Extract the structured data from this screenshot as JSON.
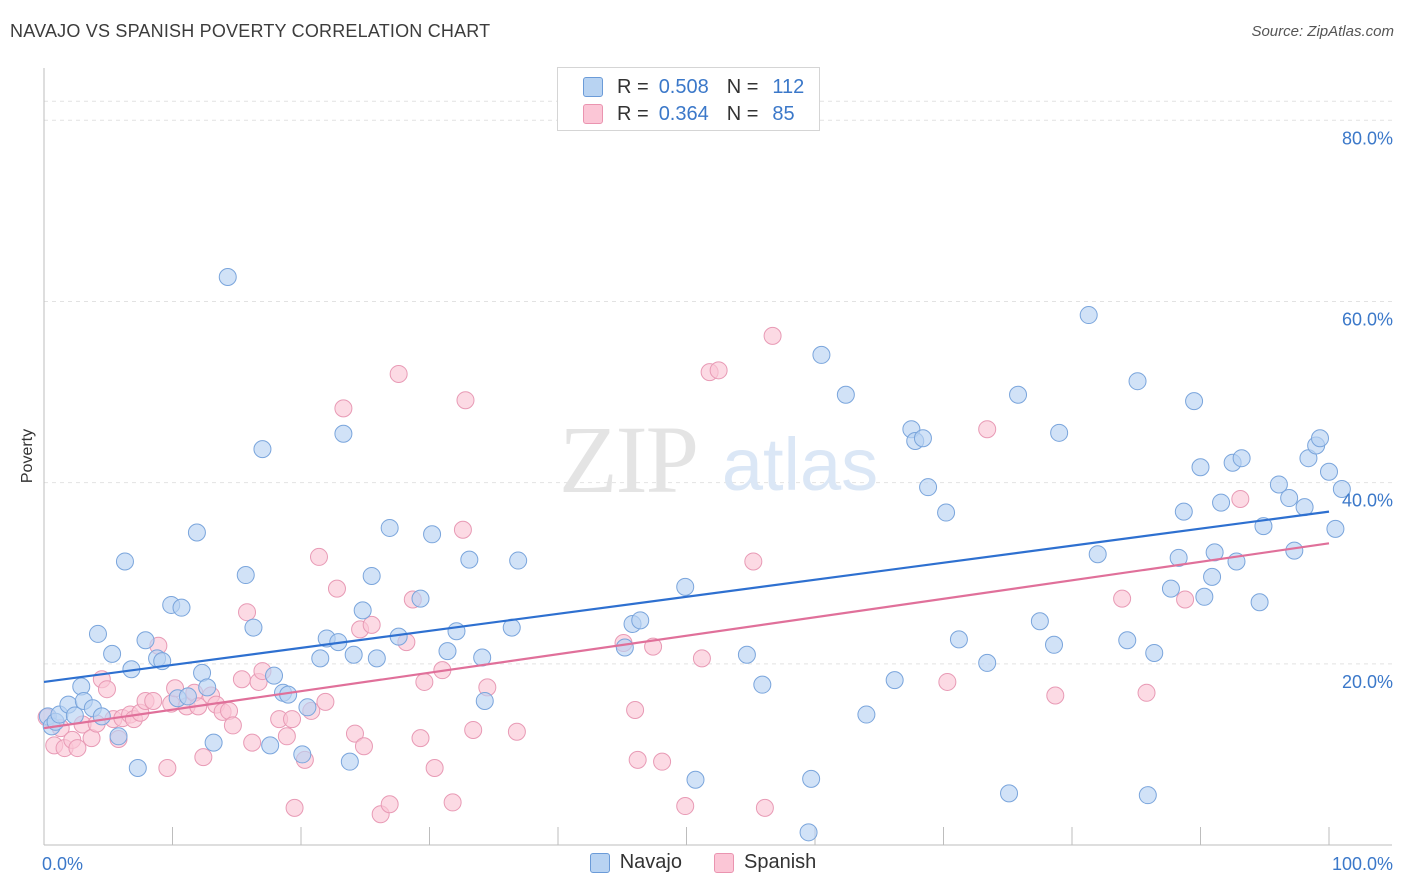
{
  "title": "NAVAJO VS SPANISH POVERTY CORRELATION CHART",
  "source": "Source: ZipAtlas.com",
  "watermark": {
    "zip": "ZIP",
    "atlas": "atlas"
  },
  "legend": {
    "navajo": {
      "r_label": "R =",
      "r_value": "0.508",
      "n_label": "N =",
      "n_value": "112"
    },
    "spanish": {
      "r_label": "R =",
      "r_value": "0.364",
      "n_label": "N =",
      "n_value": "85"
    }
  },
  "colors": {
    "navajo_fill": "#b8d3f2",
    "navajo_line": "#2e70d0",
    "spanish_fill": "#fbc6d6",
    "spanish_line": "#e0709a",
    "tick_text": "#3b78c9",
    "grid": "#e2e2e2"
  },
  "chart_data": {
    "type": "scatter",
    "title": "NAVAJO VS SPANISH POVERTY CORRELATION CHART",
    "xlabel": "",
    "ylabel": "Poverty",
    "xlim": [
      0,
      100
    ],
    "ylim": [
      0,
      85
    ],
    "x_tick_labels": [
      {
        "value": 0,
        "label": "0.0%"
      },
      {
        "value": 100,
        "label": "100.0%"
      }
    ],
    "y_tick_labels": [
      {
        "value": 20,
        "label": "20.0%"
      },
      {
        "value": 40,
        "label": "40.0%"
      },
      {
        "value": 60,
        "label": "60.0%"
      },
      {
        "value": 80,
        "label": "80.0%"
      }
    ],
    "legend_position": "top-center",
    "series": [
      {
        "name": "Navajo",
        "trend": {
          "x0": 0,
          "y0": 18.0,
          "x1": 100,
          "y1": 36.8
        },
        "points": [
          [
            0.3,
            14.2
          ],
          [
            0.6,
            13.1
          ],
          [
            0.9,
            13.6
          ],
          [
            1.2,
            14.4
          ],
          [
            1.9,
            15.5
          ],
          [
            2.4,
            14.3
          ],
          [
            2.9,
            17.5
          ],
          [
            3.1,
            15.9
          ],
          [
            3.8,
            15.1
          ],
          [
            4.2,
            23.3
          ],
          [
            4.5,
            14.2
          ],
          [
            5.3,
            21.1
          ],
          [
            5.8,
            12.0
          ],
          [
            6.3,
            31.3
          ],
          [
            6.8,
            19.4
          ],
          [
            7.3,
            8.5
          ],
          [
            7.9,
            22.6
          ],
          [
            8.8,
            20.6
          ],
          [
            9.2,
            20.3
          ],
          [
            9.9,
            26.5
          ],
          [
            10.4,
            16.2
          ],
          [
            10.7,
            26.2
          ],
          [
            11.2,
            16.4
          ],
          [
            11.9,
            34.5
          ],
          [
            12.3,
            19.0
          ],
          [
            12.7,
            17.4
          ],
          [
            13.2,
            11.3
          ],
          [
            14.3,
            62.7
          ],
          [
            15.7,
            29.8
          ],
          [
            16.3,
            24.0
          ],
          [
            17.0,
            43.7
          ],
          [
            17.6,
            11.0
          ],
          [
            17.9,
            18.7
          ],
          [
            18.6,
            16.8
          ],
          [
            19.0,
            16.6
          ],
          [
            20.1,
            10.0
          ],
          [
            20.5,
            15.2
          ],
          [
            21.5,
            20.6
          ],
          [
            22.0,
            22.8
          ],
          [
            22.9,
            22.4
          ],
          [
            23.3,
            45.4
          ],
          [
            23.8,
            9.2
          ],
          [
            24.1,
            21.0
          ],
          [
            24.8,
            25.9
          ],
          [
            25.5,
            29.7
          ],
          [
            25.9,
            20.6
          ],
          [
            26.9,
            35.0
          ],
          [
            27.6,
            23.0
          ],
          [
            29.3,
            27.2
          ],
          [
            30.2,
            34.3
          ],
          [
            31.4,
            21.4
          ],
          [
            32.1,
            23.6
          ],
          [
            33.1,
            31.5
          ],
          [
            34.1,
            20.7
          ],
          [
            34.3,
            15.9
          ],
          [
            36.4,
            24.0
          ],
          [
            36.9,
            31.4
          ],
          [
            45.2,
            21.8
          ],
          [
            45.8,
            24.4
          ],
          [
            46.4,
            24.8
          ],
          [
            49.9,
            28.5
          ],
          [
            50.7,
            7.2
          ],
          [
            54.7,
            21.0
          ],
          [
            55.9,
            17.7
          ],
          [
            59.5,
            1.4
          ],
          [
            59.7,
            7.3
          ],
          [
            60.5,
            54.1
          ],
          [
            62.4,
            49.7
          ],
          [
            64.0,
            14.4
          ],
          [
            66.2,
            18.2
          ],
          [
            67.5,
            45.9
          ],
          [
            67.8,
            44.6
          ],
          [
            68.4,
            44.9
          ],
          [
            68.8,
            39.5
          ],
          [
            70.2,
            36.7
          ],
          [
            71.2,
            22.7
          ],
          [
            73.4,
            20.1
          ],
          [
            75.1,
            5.7
          ],
          [
            75.8,
            49.7
          ],
          [
            77.5,
            24.7
          ],
          [
            78.6,
            22.1
          ],
          [
            79.0,
            45.5
          ],
          [
            81.3,
            58.5
          ],
          [
            82.0,
            32.1
          ],
          [
            84.3,
            22.6
          ],
          [
            85.1,
            51.2
          ],
          [
            85.9,
            5.5
          ],
          [
            86.4,
            21.2
          ],
          [
            87.7,
            28.3
          ],
          [
            88.3,
            31.7
          ],
          [
            88.7,
            36.8
          ],
          [
            89.5,
            49.0
          ],
          [
            90.0,
            41.7
          ],
          [
            90.3,
            27.4
          ],
          [
            90.9,
            29.6
          ],
          [
            91.1,
            32.3
          ],
          [
            91.6,
            37.8
          ],
          [
            92.5,
            42.2
          ],
          [
            92.8,
            31.3
          ],
          [
            93.2,
            42.7
          ],
          [
            94.6,
            26.8
          ],
          [
            94.9,
            35.2
          ],
          [
            96.1,
            39.8
          ],
          [
            96.9,
            38.3
          ],
          [
            97.3,
            32.5
          ],
          [
            98.1,
            37.3
          ],
          [
            98.4,
            42.7
          ],
          [
            99.0,
            44.1
          ],
          [
            99.3,
            44.9
          ],
          [
            100.0,
            41.2
          ],
          [
            100.5,
            34.9
          ],
          [
            101.0,
            39.3
          ]
        ]
      },
      {
        "name": "Spanish",
        "trend": {
          "x0": 0,
          "y0": 12.9,
          "x1": 100,
          "y1": 33.3
        },
        "points": [
          [
            0.2,
            14.1
          ],
          [
            0.8,
            11.0
          ],
          [
            1.3,
            12.9
          ],
          [
            1.6,
            10.7
          ],
          [
            2.2,
            11.6
          ],
          [
            2.6,
            10.7
          ],
          [
            3.0,
            13.3
          ],
          [
            3.7,
            11.8
          ],
          [
            4.1,
            13.4
          ],
          [
            4.5,
            18.3
          ],
          [
            4.9,
            17.2
          ],
          [
            5.4,
            13.9
          ],
          [
            5.8,
            11.7
          ],
          [
            6.1,
            14.0
          ],
          [
            6.7,
            14.4
          ],
          [
            7.0,
            13.9
          ],
          [
            7.5,
            14.6
          ],
          [
            7.9,
            15.9
          ],
          [
            8.5,
            15.9
          ],
          [
            8.9,
            22.0
          ],
          [
            9.6,
            8.5
          ],
          [
            9.9,
            15.6
          ],
          [
            10.2,
            17.3
          ],
          [
            11.1,
            15.3
          ],
          [
            11.7,
            16.8
          ],
          [
            12.0,
            15.3
          ],
          [
            12.4,
            9.7
          ],
          [
            13.0,
            16.5
          ],
          [
            13.4,
            15.5
          ],
          [
            13.9,
            14.7
          ],
          [
            14.4,
            14.8
          ],
          [
            14.7,
            13.2
          ],
          [
            15.4,
            18.3
          ],
          [
            15.8,
            25.7
          ],
          [
            16.2,
            11.3
          ],
          [
            16.7,
            18.0
          ],
          [
            17.0,
            19.2
          ],
          [
            18.3,
            13.9
          ],
          [
            18.9,
            12.0
          ],
          [
            19.3,
            13.9
          ],
          [
            19.5,
            4.1
          ],
          [
            20.3,
            9.4
          ],
          [
            20.8,
            14.8
          ],
          [
            21.4,
            31.8
          ],
          [
            21.9,
            15.8
          ],
          [
            22.8,
            28.3
          ],
          [
            23.3,
            48.2
          ],
          [
            24.2,
            12.3
          ],
          [
            24.6,
            23.8
          ],
          [
            24.9,
            10.9
          ],
          [
            25.5,
            24.3
          ],
          [
            26.2,
            3.4
          ],
          [
            26.9,
            4.5
          ],
          [
            27.6,
            52.0
          ],
          [
            28.2,
            22.4
          ],
          [
            28.7,
            27.1
          ],
          [
            29.3,
            11.8
          ],
          [
            29.6,
            18.0
          ],
          [
            30.4,
            8.5
          ],
          [
            31.0,
            19.3
          ],
          [
            31.8,
            4.7
          ],
          [
            32.6,
            34.8
          ],
          [
            32.8,
            49.1
          ],
          [
            33.4,
            12.7
          ],
          [
            34.5,
            17.4
          ],
          [
            36.8,
            12.5
          ],
          [
            45.1,
            22.3
          ],
          [
            46.0,
            14.9
          ],
          [
            46.2,
            9.4
          ],
          [
            47.4,
            21.9
          ],
          [
            48.1,
            9.2
          ],
          [
            49.9,
            4.3
          ],
          [
            51.2,
            20.6
          ],
          [
            51.8,
            52.2
          ],
          [
            52.5,
            52.4
          ],
          [
            55.2,
            31.3
          ],
          [
            56.1,
            4.1
          ],
          [
            56.7,
            56.2
          ],
          [
            70.3,
            18.0
          ],
          [
            73.4,
            45.9
          ],
          [
            78.7,
            16.5
          ],
          [
            83.9,
            27.2
          ],
          [
            85.8,
            16.8
          ],
          [
            88.8,
            27.1
          ],
          [
            93.1,
            38.2
          ]
        ]
      }
    ]
  }
}
